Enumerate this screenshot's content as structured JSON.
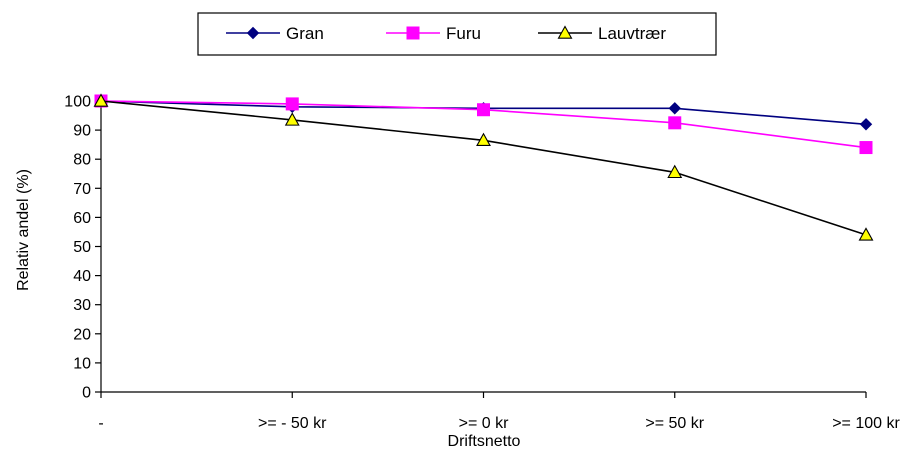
{
  "chart_data": {
    "type": "line",
    "categories": [
      "-",
      ">= - 50 kr",
      ">= 0 kr",
      ">= 50 kr",
      ">= 100 kr"
    ],
    "series": [
      {
        "name": "Gran",
        "values": [
          100,
          98,
          97.5,
          97.5,
          92
        ],
        "color": "#000080",
        "marker": "diamond"
      },
      {
        "name": "Furu",
        "values": [
          100,
          99,
          97,
          92.5,
          84
        ],
        "color": "#ff00ff",
        "marker": "square"
      },
      {
        "name": "Lauvtrær",
        "values": [
          100,
          93.5,
          86.5,
          75.5,
          54
        ],
        "color": "#000000",
        "marker": "triangle",
        "marker_fill": "#ffff00"
      }
    ],
    "xlabel": "Driftsnetto",
    "ylabel": "Relativ andel (%)",
    "ylim": [
      0,
      100
    ],
    "yticks": [
      0,
      10,
      20,
      30,
      40,
      50,
      60,
      70,
      80,
      90,
      100
    ],
    "grid": false,
    "legend": "top-center"
  }
}
